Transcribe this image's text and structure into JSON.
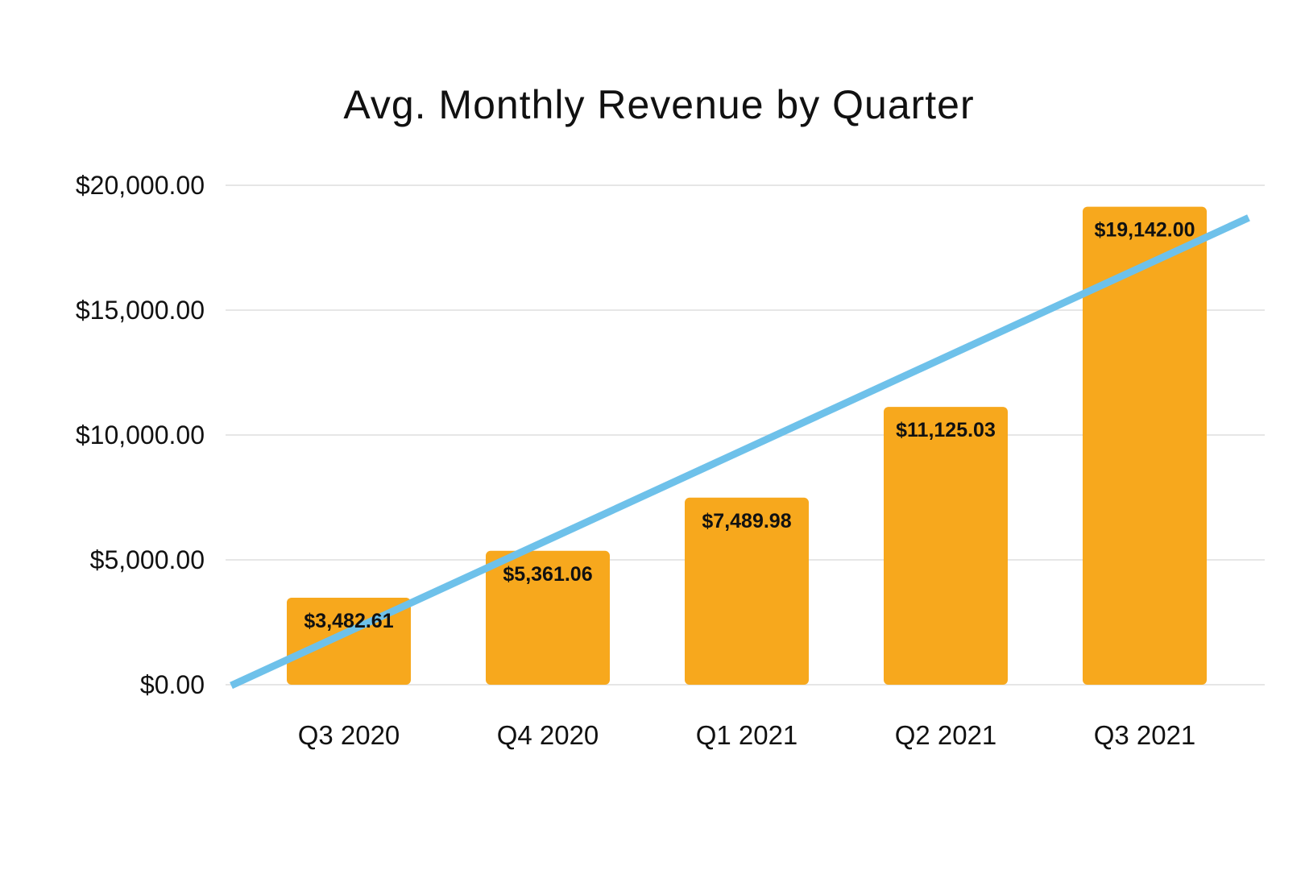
{
  "chart_data": {
    "type": "bar",
    "title": "Avg. Monthly Revenue by Quarter",
    "xlabel": "",
    "ylabel": "",
    "ylim": [
      0,
      20000
    ],
    "yticks": [
      0,
      5000,
      10000,
      15000,
      20000
    ],
    "ytick_labels": [
      "$0.00",
      "$5,000.00",
      "$10,000.00",
      "$15,000.00",
      "$20,000.00"
    ],
    "categories": [
      "Q3 2020",
      "Q4 2020",
      "Q1 2021",
      "Q2 2021",
      "Q3 2021"
    ],
    "values": [
      3482.61,
      5361.06,
      7489.98,
      11125.03,
      19142.0
    ],
    "data_labels": [
      "$3,482.61",
      "$5,361.06",
      "$7,489.98",
      "$11,125.03",
      "$19,142.00"
    ],
    "trendline": {
      "type": "linear",
      "start_value": 0,
      "end_value": 18700
    },
    "grid": true,
    "legend": "none",
    "colors": {
      "bar": "#F7A81D",
      "trendline": "#6EC1EA",
      "grid": "#E6E6E6",
      "text": "#111111"
    }
  }
}
